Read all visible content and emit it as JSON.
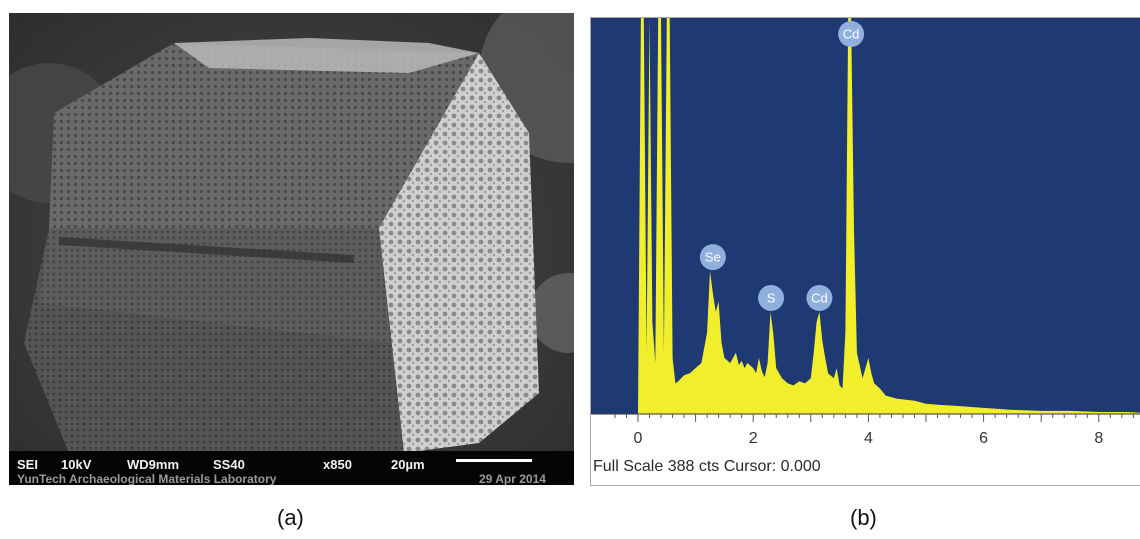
{
  "captions": {
    "a": "(a)",
    "b": "(b)"
  },
  "sem": {
    "info": [
      "SEI",
      "10kV",
      "WD9mm",
      "SS40",
      "x850",
      "20µm"
    ],
    "line2": "YunTech Archaeological Materials Laboratory",
    "date": "29 Apr 2014",
    "scale_bar_label": "20µm"
  },
  "eds": {
    "status_text": "Full Scale 388 cts Cursor: 0.000",
    "colors": {
      "background": "#1f3a73",
      "spectrum": "#f1ef2c",
      "label_bubble": "#8fb0dc"
    }
  },
  "chart_data": {
    "type": "area",
    "title": "",
    "xlabel": "",
    "ylabel": "",
    "xlim": [
      -0.4,
      8.8
    ],
    "ylim": [
      0,
      388
    ],
    "x_ticks": [
      0,
      2,
      4,
      6,
      8
    ],
    "grid": false,
    "series": [
      {
        "x": [
          -0.1,
          0.0,
          0.05,
          0.1,
          0.15,
          0.2,
          0.25,
          0.3,
          0.35,
          0.4,
          0.45,
          0.5,
          0.55,
          0.6,
          0.65,
          0.7,
          0.8,
          0.9,
          1.0,
          1.1,
          1.2,
          1.25,
          1.3,
          1.35,
          1.4,
          1.45,
          1.5,
          1.6,
          1.7,
          1.75,
          1.8,
          1.85,
          1.9,
          2.0,
          2.05,
          2.1,
          2.15,
          2.2,
          2.25,
          2.3,
          2.35,
          2.4,
          2.5,
          2.6,
          2.7,
          2.8,
          2.9,
          3.0,
          3.05,
          3.1,
          3.15,
          3.2,
          3.25,
          3.3,
          3.4,
          3.45,
          3.5,
          3.55,
          3.6,
          3.65,
          3.7,
          3.75,
          3.8,
          3.9,
          3.95,
          4.0,
          4.05,
          4.1,
          4.2,
          4.3,
          4.5,
          4.8,
          5.0,
          5.2,
          5.5,
          6.0,
          6.5,
          7.0,
          7.5,
          8.0,
          8.5,
          8.8
        ],
        "y": [
          0,
          0,
          388,
          388,
          60,
          388,
          90,
          50,
          388,
          388,
          60,
          388,
          388,
          55,
          30,
          32,
          38,
          40,
          45,
          50,
          80,
          140,
          118,
          100,
          110,
          70,
          55,
          50,
          60,
          48,
          52,
          45,
          50,
          45,
          40,
          55,
          42,
          36,
          50,
          100,
          78,
          45,
          35,
          30,
          28,
          32,
          30,
          35,
          60,
          90,
          100,
          72,
          55,
          40,
          35,
          45,
          28,
          25,
          80,
          388,
          388,
          180,
          60,
          35,
          45,
          55,
          40,
          30,
          25,
          18,
          15,
          13,
          10,
          9,
          8,
          6,
          4,
          3,
          3,
          2,
          2,
          1
        ]
      }
    ],
    "annotations": [
      {
        "label": "Se",
        "x": 1.3,
        "y": 140
      },
      {
        "label": "S",
        "x": 2.31,
        "y": 100
      },
      {
        "label": "Cd",
        "x": 3.15,
        "y": 100
      },
      {
        "label": "Cd",
        "x": 3.7,
        "y": 388
      }
    ]
  }
}
